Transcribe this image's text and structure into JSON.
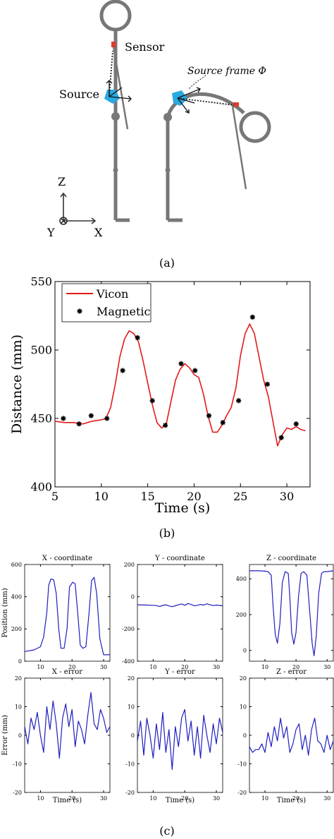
{
  "figure": {
    "panel_a": {
      "caption": "(a)",
      "labels": {
        "sensor": "Sensor",
        "source": "Source",
        "source_frame": "Source frame Φ",
        "axis_z": "Z",
        "axis_x": "X",
        "axis_y": "Y"
      },
      "colors": {
        "body": "#777777",
        "source": "#29a9e1",
        "sensor": "#e03a2a"
      }
    },
    "panel_b": {
      "caption": "(b)"
    },
    "panel_c": {
      "caption": "(c)"
    }
  },
  "chart_data": [
    {
      "type": "line",
      "panel": "b",
      "xlabel": "Time (s)",
      "ylabel": "Distance (mm)",
      "xlim": [
        5,
        32.5
      ],
      "ylim": [
        400,
        550
      ],
      "xticks": [
        5,
        10,
        15,
        20,
        25,
        30
      ],
      "yticks": [
        400,
        450,
        500,
        550
      ],
      "legend_placement": "top-left",
      "series": [
        {
          "name": "Vicon",
          "color": "#e31a1c",
          "x": [
            5,
            6,
            7,
            8,
            9,
            10,
            10.5,
            11,
            11.5,
            12,
            12.5,
            13,
            13.5,
            14,
            14.5,
            15,
            15.5,
            16,
            16.5,
            17,
            17.5,
            18,
            18.5,
            19,
            19.5,
            20,
            20.5,
            21,
            21.5,
            22,
            22.5,
            23,
            23.5,
            24,
            24.5,
            25,
            25.5,
            26,
            26.5,
            27,
            27.5,
            28,
            28.5,
            29,
            29.5,
            30,
            30.5,
            31,
            31.5,
            32
          ],
          "y": [
            448,
            447,
            447,
            446,
            448,
            449,
            450,
            458,
            475,
            495,
            508,
            514,
            512,
            506,
            492,
            476,
            460,
            447,
            443,
            446,
            462,
            478,
            486,
            490,
            487,
            482,
            480,
            468,
            452,
            440,
            440,
            445,
            452,
            458,
            472,
            496,
            512,
            519,
            512,
            495,
            478,
            466,
            448,
            430,
            438,
            443,
            442,
            444,
            442,
            441
          ]
        },
        {
          "name": "Magnetic",
          "color": "#000000",
          "x": [
            5.9,
            7.6,
            8.9,
            10.6,
            12.3,
            13.9,
            15.5,
            16.9,
            18.6,
            20.1,
            21.6,
            23.1,
            24.8,
            26.3,
            27.9,
            29.4,
            31.0
          ],
          "y": [
            450,
            446,
            452,
            450,
            485,
            509,
            463,
            445,
            490,
            485,
            452,
            447,
            463,
            524,
            475,
            436,
            446
          ]
        }
      ]
    },
    {
      "type": "line",
      "panel": "c",
      "title": "X - coordinate",
      "ylabel": "Position (mm)",
      "xlim": [
        5,
        32
      ],
      "ylim": [
        0,
        600
      ],
      "xticks": [
        10,
        20,
        30
      ],
      "yticks": [
        0,
        200,
        400,
        600
      ],
      "series": [
        {
          "color": "#1f1fbf",
          "x": [
            5,
            8,
            10,
            11,
            12,
            12.6,
            13.3,
            14.2,
            15,
            15.8,
            16.5,
            17.5,
            18.4,
            19.2,
            20.2,
            21,
            21.8,
            22.6,
            23.4,
            24.4,
            25.4,
            26.2,
            27,
            27.8,
            28.8,
            30,
            32
          ],
          "y": [
            60,
            70,
            90,
            150,
            300,
            470,
            510,
            505,
            420,
            200,
            80,
            80,
            200,
            460,
            490,
            480,
            300,
            100,
            80,
            90,
            300,
            500,
            520,
            420,
            140,
            40,
            40
          ]
        }
      ]
    },
    {
      "type": "line",
      "panel": "c",
      "title": "Y - coordinate",
      "xlim": [
        5,
        32
      ],
      "ylim": [
        -400,
        200
      ],
      "xticks": [
        10,
        20,
        30
      ],
      "yticks": [
        -400,
        -200,
        0,
        200
      ],
      "series": [
        {
          "color": "#1f1fbf",
          "x": [
            5,
            8,
            10,
            11,
            12,
            13,
            14,
            15,
            16,
            17,
            18,
            19,
            20,
            21,
            22,
            23,
            24,
            25,
            26,
            27,
            28,
            29,
            30,
            31,
            32
          ],
          "y": [
            -50,
            -52,
            -53,
            -55,
            -60,
            -54,
            -50,
            -57,
            -62,
            -56,
            -50,
            -45,
            -53,
            -42,
            -48,
            -56,
            -53,
            -48,
            -52,
            -44,
            -50,
            -55,
            -52,
            -54,
            -56
          ]
        }
      ]
    },
    {
      "type": "line",
      "panel": "c",
      "title": "Z - coordinate",
      "xlim": [
        5,
        32
      ],
      "ylim": [
        -60,
        480
      ],
      "xticks": [
        10,
        20,
        30
      ],
      "yticks": [
        0,
        200,
        400
      ],
      "series": [
        {
          "color": "#1f1fbf",
          "x": [
            5,
            8,
            10,
            11,
            12,
            12.6,
            13.3,
            14,
            14.8,
            15.6,
            16.5,
            17.5,
            18,
            18.6,
            19.3,
            20,
            20.8,
            21.6,
            22.5,
            23.5,
            24.5,
            25.2,
            25.8,
            26.5,
            27.3,
            28.2,
            29,
            30,
            32
          ],
          "y": [
            445,
            445,
            443,
            440,
            420,
            250,
            90,
            40,
            150,
            380,
            440,
            430,
            300,
            100,
            35,
            100,
            300,
            430,
            440,
            420,
            200,
            40,
            -30,
            80,
            320,
            430,
            440,
            440,
            445
          ]
        }
      ]
    },
    {
      "type": "line",
      "panel": "c",
      "title": "X - error",
      "xlabel": "Time (s)",
      "ylabel": "Error (mm)",
      "xlim": [
        5,
        32
      ],
      "ylim": [
        -20,
        20
      ],
      "xticks": [
        10,
        20,
        30
      ],
      "yticks": [
        -20,
        -10,
        0,
        10,
        20
      ],
      "series": [
        {
          "color": "#1f1fbf",
          "x": [
            5,
            6,
            7,
            8,
            9,
            10,
            11,
            12,
            13,
            14,
            15,
            16,
            17,
            18,
            19,
            20,
            21,
            22,
            23,
            24,
            25,
            26,
            27,
            28,
            29,
            30,
            31,
            32
          ],
          "y": [
            3,
            -3,
            6,
            2,
            8,
            0,
            -6,
            10,
            2,
            12,
            4,
            -8,
            6,
            11,
            3,
            9,
            -4,
            5,
            2,
            -3,
            7,
            15,
            4,
            2,
            9,
            6,
            1,
            3
          ]
        }
      ]
    },
    {
      "type": "line",
      "panel": "c",
      "title": "Y - error",
      "xlabel": "Time (s)",
      "xlim": [
        5,
        32
      ],
      "ylim": [
        -20,
        20
      ],
      "xticks": [
        10,
        20,
        30
      ],
      "yticks": [
        -20,
        -10,
        0,
        10,
        20
      ],
      "series": [
        {
          "color": "#1f1fbf",
          "x": [
            5,
            6,
            7,
            8,
            9,
            10,
            11,
            12,
            13,
            14,
            15,
            16,
            17,
            18,
            19,
            20,
            21,
            22,
            23,
            24,
            25,
            26,
            27,
            28,
            29,
            30,
            31,
            32
          ],
          "y": [
            -2,
            5,
            -7,
            6,
            0,
            -8,
            4,
            -5,
            8,
            -6,
            2,
            -12,
            3,
            -4,
            6,
            9,
            -2,
            5,
            -7,
            3,
            -8,
            7,
            0,
            -6,
            4,
            -3,
            6,
            1
          ]
        }
      ]
    },
    {
      "type": "line",
      "panel": "c",
      "title": "Z - error",
      "xlabel": "Time (s)",
      "xlim": [
        5,
        32
      ],
      "ylim": [
        -20,
        20
      ],
      "xticks": [
        10,
        20,
        30
      ],
      "yticks": [
        -20,
        -10,
        0,
        10,
        20
      ],
      "series": [
        {
          "color": "#1f1fbf",
          "x": [
            5,
            6,
            7,
            8,
            9,
            10,
            11,
            12,
            13,
            14,
            15,
            16,
            17,
            18,
            19,
            20,
            21,
            22,
            23,
            24,
            25,
            26,
            27,
            28,
            29,
            30,
            31,
            32
          ],
          "y": [
            -4,
            -6,
            -5,
            -5,
            -3,
            -6,
            1,
            -4,
            3,
            -2,
            6,
            -1,
            3,
            -6,
            -3,
            2,
            4,
            -5,
            0,
            -7,
            2,
            6,
            -2,
            -3,
            -6,
            0,
            -5,
            -2
          ]
        }
      ]
    }
  ]
}
